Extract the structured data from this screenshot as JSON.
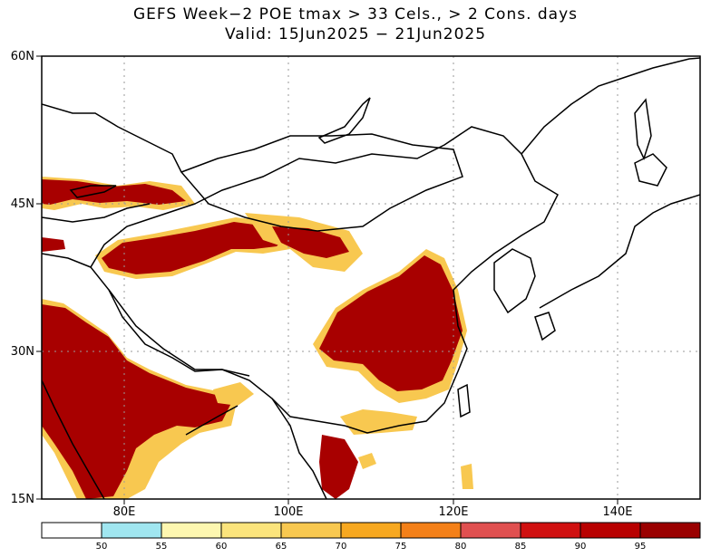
{
  "title_line1": "GEFS Week−2 POE tmax > 33 Cels., > 2 Cons. days",
  "title_line2": "Valid: 15Jun2025 − 21Jun2025",
  "map": {
    "lon_range": [
      70,
      150
    ],
    "lat_range": [
      15,
      60
    ],
    "lat_ticks": [
      {
        "value": 15,
        "label": "15N"
      },
      {
        "value": 30,
        "label": "30N"
      },
      {
        "value": 45,
        "label": "45N"
      },
      {
        "value": 60,
        "label": "60N"
      }
    ],
    "lon_ticks": [
      {
        "value": 80,
        "label": "80E"
      },
      {
        "value": 100,
        "label": "100E"
      },
      {
        "value": 120,
        "label": "120E"
      },
      {
        "value": 140,
        "label": "140E"
      }
    ],
    "grid": true
  },
  "colorbar": {
    "colors": [
      "#ffffff",
      "#a0e6f0",
      "#fdf7b0",
      "#fbe47c",
      "#f8c850",
      "#f7a820",
      "#f48018",
      "#e05050",
      "#d01010",
      "#b80000",
      "#9a0000"
    ],
    "labels": [
      "50",
      "55",
      "60",
      "65",
      "70",
      "75",
      "80",
      "85",
      "90",
      "95"
    ]
  }
}
